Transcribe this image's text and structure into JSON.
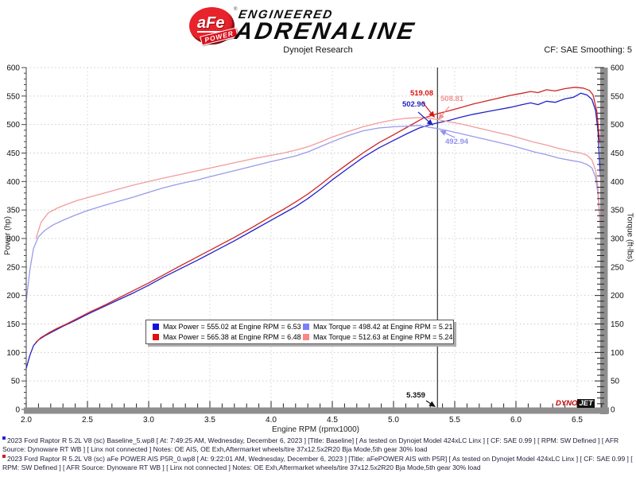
{
  "header": {
    "brand": {
      "circle_text": "aFe",
      "circle_sub": "POWER",
      "reg": "®",
      "top": "ENGINEERED",
      "bottom": "ADRENALINE"
    },
    "title": "Dynojet Research",
    "correction": "CF: SAE Smoothing: 5"
  },
  "chart_data": {
    "type": "line",
    "xlabel": "Engine RPM (rpmx1000)",
    "ylabel_left": "Power (hp)",
    "ylabel_right": "Torque (ft-lbs)",
    "xlim": [
      2.0,
      6.72
    ],
    "ylim_left": [
      0,
      600
    ],
    "ylim_right": [
      0,
      600
    ],
    "x_ticks": [
      2.0,
      2.5,
      3.0,
      3.5,
      4.0,
      4.5,
      5.0,
      5.5,
      6.0,
      6.5
    ],
    "y_ticks": [
      0,
      50,
      100,
      150,
      200,
      250,
      300,
      350,
      400,
      450,
      500,
      550,
      600
    ],
    "grid": "dotted",
    "cursor": {
      "rpm": 5.359
    },
    "series": [
      {
        "name": "baseline-power-hp",
        "color": "#2222c8",
        "axis": "left",
        "points": [
          [
            2.0,
            72
          ],
          [
            2.03,
            95
          ],
          [
            2.06,
            112
          ],
          [
            2.1,
            122
          ],
          [
            2.15,
            129
          ],
          [
            2.22,
            137
          ],
          [
            2.3,
            146
          ],
          [
            2.4,
            156
          ],
          [
            2.5,
            167
          ],
          [
            2.62,
            179
          ],
          [
            2.75,
            192
          ],
          [
            2.88,
            205
          ],
          [
            3.0,
            218
          ],
          [
            3.12,
            232
          ],
          [
            3.25,
            246
          ],
          [
            3.4,
            262
          ],
          [
            3.55,
            279
          ],
          [
            3.7,
            296
          ],
          [
            3.85,
            314
          ],
          [
            4.0,
            332
          ],
          [
            4.1,
            344
          ],
          [
            4.2,
            356
          ],
          [
            4.3,
            370
          ],
          [
            4.4,
            386
          ],
          [
            4.5,
            403
          ],
          [
            4.62,
            422
          ],
          [
            4.75,
            442
          ],
          [
            4.88,
            459
          ],
          [
            5.0,
            472
          ],
          [
            5.1,
            483
          ],
          [
            5.21,
            494
          ],
          [
            5.3,
            500
          ],
          [
            5.359,
            502.9
          ],
          [
            5.45,
            507
          ],
          [
            5.55,
            513
          ],
          [
            5.65,
            518
          ],
          [
            5.75,
            522
          ],
          [
            5.85,
            526
          ],
          [
            5.95,
            530
          ],
          [
            6.05,
            535
          ],
          [
            6.12,
            538
          ],
          [
            6.18,
            535
          ],
          [
            6.25,
            541
          ],
          [
            6.32,
            539
          ],
          [
            6.4,
            545
          ],
          [
            6.47,
            548
          ],
          [
            6.53,
            555.02
          ],
          [
            6.58,
            552
          ],
          [
            6.62,
            544
          ],
          [
            6.65,
            525
          ],
          [
            6.67,
            489
          ],
          [
            6.68,
            445
          ],
          [
            6.69,
            410
          ],
          [
            6.7,
            388
          ]
        ]
      },
      {
        "name": "afe-power-hp",
        "color": "#d02424",
        "axis": "left",
        "points": [
          [
            2.08,
            118
          ],
          [
            2.12,
            126
          ],
          [
            2.18,
            134
          ],
          [
            2.25,
            142
          ],
          [
            2.33,
            150
          ],
          [
            2.42,
            160
          ],
          [
            2.52,
            171
          ],
          [
            2.64,
            183
          ],
          [
            2.76,
            196
          ],
          [
            2.88,
            209
          ],
          [
            3.0,
            222
          ],
          [
            3.12,
            236
          ],
          [
            3.25,
            251
          ],
          [
            3.4,
            268
          ],
          [
            3.55,
            285
          ],
          [
            3.7,
            302
          ],
          [
            3.85,
            320
          ],
          [
            4.0,
            339
          ],
          [
            4.1,
            351
          ],
          [
            4.2,
            364
          ],
          [
            4.3,
            378
          ],
          [
            4.4,
            394
          ],
          [
            4.5,
            411
          ],
          [
            4.62,
            430
          ],
          [
            4.75,
            450
          ],
          [
            4.88,
            468
          ],
          [
            5.0,
            482
          ],
          [
            5.1,
            494
          ],
          [
            5.24,
            511
          ],
          [
            5.3,
            515
          ],
          [
            5.359,
            519.08
          ],
          [
            5.45,
            524
          ],
          [
            5.55,
            530
          ],
          [
            5.65,
            536
          ],
          [
            5.75,
            541
          ],
          [
            5.85,
            546
          ],
          [
            5.95,
            551
          ],
          [
            6.05,
            555
          ],
          [
            6.12,
            558
          ],
          [
            6.18,
            556
          ],
          [
            6.25,
            561
          ],
          [
            6.32,
            559
          ],
          [
            6.4,
            563
          ],
          [
            6.48,
            565.38
          ],
          [
            6.55,
            564
          ],
          [
            6.6,
            560
          ],
          [
            6.63,
            552
          ],
          [
            6.66,
            524
          ],
          [
            6.68,
            478
          ],
          [
            6.7,
            455
          ]
        ]
      },
      {
        "name": "baseline-torque-ftlbs",
        "color": "#9a9aec",
        "axis": "right",
        "points": [
          [
            2.0,
            190
          ],
          [
            2.03,
            245
          ],
          [
            2.06,
            283
          ],
          [
            2.1,
            303
          ],
          [
            2.15,
            314
          ],
          [
            2.22,
            324
          ],
          [
            2.3,
            332
          ],
          [
            2.4,
            341
          ],
          [
            2.5,
            349
          ],
          [
            2.62,
            357
          ],
          [
            2.75,
            365
          ],
          [
            2.88,
            373
          ],
          [
            3.0,
            381
          ],
          [
            3.12,
            389
          ],
          [
            3.25,
            396
          ],
          [
            3.4,
            403
          ],
          [
            3.55,
            411
          ],
          [
            3.7,
            419
          ],
          [
            3.85,
            427
          ],
          [
            4.0,
            435
          ],
          [
            4.1,
            440
          ],
          [
            4.2,
            445
          ],
          [
            4.3,
            452
          ],
          [
            4.4,
            461
          ],
          [
            4.5,
            470
          ],
          [
            4.62,
            480
          ],
          [
            4.75,
            489
          ],
          [
            4.88,
            494
          ],
          [
            5.0,
            496
          ],
          [
            5.1,
            497
          ],
          [
            5.21,
            498.42
          ],
          [
            5.3,
            495
          ],
          [
            5.359,
            492.94
          ],
          [
            5.45,
            489
          ],
          [
            5.55,
            484
          ],
          [
            5.65,
            479
          ],
          [
            5.75,
            474
          ],
          [
            5.85,
            469
          ],
          [
            5.95,
            464
          ],
          [
            6.05,
            458
          ],
          [
            6.15,
            452
          ],
          [
            6.25,
            447
          ],
          [
            6.35,
            441
          ],
          [
            6.45,
            437
          ],
          [
            6.53,
            434
          ],
          [
            6.58,
            430
          ],
          [
            6.62,
            424
          ],
          [
            6.65,
            408
          ],
          [
            6.67,
            378
          ],
          [
            6.68,
            345
          ],
          [
            6.69,
            315
          ],
          [
            6.7,
            302
          ]
        ]
      },
      {
        "name": "afe-torque-ftlbs",
        "color": "#f29c9c",
        "axis": "right",
        "points": [
          [
            2.08,
            300
          ],
          [
            2.12,
            328
          ],
          [
            2.18,
            345
          ],
          [
            2.25,
            353
          ],
          [
            2.33,
            360
          ],
          [
            2.42,
            367
          ],
          [
            2.52,
            373
          ],
          [
            2.64,
            380
          ],
          [
            2.76,
            387
          ],
          [
            2.88,
            394
          ],
          [
            3.0,
            400
          ],
          [
            3.12,
            406
          ],
          [
            3.25,
            412
          ],
          [
            3.4,
            419
          ],
          [
            3.55,
            426
          ],
          [
            3.7,
            433
          ],
          [
            3.85,
            440
          ],
          [
            4.0,
            446
          ],
          [
            4.1,
            450
          ],
          [
            4.2,
            455
          ],
          [
            4.3,
            461
          ],
          [
            4.4,
            469
          ],
          [
            4.5,
            478
          ],
          [
            4.62,
            487
          ],
          [
            4.75,
            496
          ],
          [
            4.88,
            503
          ],
          [
            5.0,
            508
          ],
          [
            5.1,
            511
          ],
          [
            5.24,
            512.63
          ],
          [
            5.3,
            511
          ],
          [
            5.359,
            508.81
          ],
          [
            5.45,
            505
          ],
          [
            5.55,
            501
          ],
          [
            5.65,
            496
          ],
          [
            5.75,
            491
          ],
          [
            5.85,
            486
          ],
          [
            5.95,
            481
          ],
          [
            6.05,
            475
          ],
          [
            6.15,
            469
          ],
          [
            6.25,
            464
          ],
          [
            6.35,
            458
          ],
          [
            6.45,
            453
          ],
          [
            6.53,
            450
          ],
          [
            6.58,
            446
          ],
          [
            6.62,
            438
          ],
          [
            6.65,
            420
          ],
          [
            6.67,
            390
          ],
          [
            6.68,
            355
          ],
          [
            6.69,
            320
          ],
          [
            6.7,
            305
          ]
        ]
      }
    ],
    "legend": [
      {
        "swatch": "#1111dd",
        "label": "Max Power = 555.02 at Engine RPM = 6.53"
      },
      {
        "swatch": "#7d7dff",
        "label": "Max Torque = 498.42 at Engine RPM = 5.21"
      },
      {
        "swatch": "#dd1111",
        "label": "Max Power = 565.38 at Engine RPM = 6.48"
      },
      {
        "swatch": "#ff8585",
        "label": "Max Torque = 512.63 at Engine RPM = 5.24"
      }
    ],
    "annotations": [
      {
        "name": "cursor-power-afe",
        "text": "519.08",
        "color": "#dd1414"
      },
      {
        "name": "cursor-power-baseline",
        "text": "502.90",
        "color": "#2323bb"
      },
      {
        "name": "cursor-torque-afe",
        "text": "508.81",
        "color": "#ef9292"
      },
      {
        "name": "cursor-torque-baseline",
        "text": "492.94",
        "color": "#9292ef"
      },
      {
        "name": "cursor-rpm",
        "text": "5.359",
        "color": "#111111"
      }
    ]
  },
  "watermark": {
    "part1": "DYNO",
    "part2": "JET"
  },
  "footer": {
    "runs": [
      {
        "marker_color": "#2222cc",
        "text": "2023 Ford Raptor R 5.2L V8 (sc) Baseline_5.wp8 [ At: 7:49:25 AM, Wednesday, December 6, 2023 ] [Title: Baseline]  [ As tested on Dynojet Model 424xLC Linx ] [ CF: SAE 0.99 ] [ RPM: SW Defined ] [ AFR Source: Dynoware RT WB ] [ Linx not connected ] Notes: OE AIS, OE Exh,Aftermarket wheels/tire 37x12.5x2R20 Bja Mode,5th gear 30% load"
      },
      {
        "marker_color": "#cc2222",
        "text": "2023 Ford Raptor R 5.2L V8 (sc) aFe POWER AIS P5R_0.wp8 [ At: 9:22:01 AM, Wednesday, December 6, 2023 ] [Title: aFePOWER AIS with P5R]  [ As tested on Dynojet Model 424xLC Linx ] [ CF: SAE 0.99 ] [ RPM: SW Defined ] [ AFR Source: Dynoware RT WB ] [ Linx not connected ] Notes: OE Exh,Aftermarket wheels/tire 37x12.5x2R20 Bja Mode,5th gear 30% load"
      }
    ]
  }
}
